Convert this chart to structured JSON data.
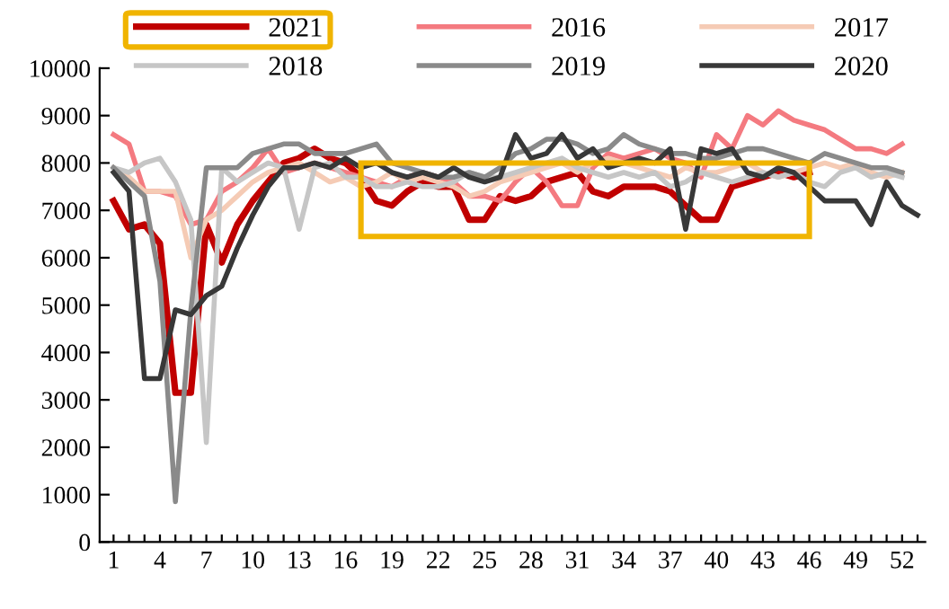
{
  "chart_data": {
    "type": "line",
    "categories": [
      "1",
      null,
      null,
      "4",
      null,
      null,
      "7",
      null,
      null,
      "10",
      null,
      null,
      "13",
      null,
      null,
      "16",
      null,
      null,
      "19",
      null,
      null,
      "22",
      null,
      null,
      "25",
      null,
      null,
      "28",
      null,
      null,
      "31",
      null,
      null,
      "34",
      null,
      null,
      "37",
      null,
      null,
      "40",
      null,
      null,
      "43",
      null,
      null,
      "46",
      null,
      null,
      "49",
      null,
      null,
      "52",
      null
    ],
    "series": [
      {
        "name": "2021",
        "color": "#c00000",
        "values": [
          7200,
          6600,
          6700,
          6300,
          3150,
          3150,
          6700,
          5900,
          6700,
          7200,
          7600,
          8000,
          8100,
          8300,
          8100,
          8000,
          7700,
          7200,
          7100,
          7400,
          7600,
          7500,
          7500,
          6800,
          6800,
          7300,
          7200,
          7300,
          7600,
          7700,
          7800,
          7400,
          7300,
          7500,
          7500,
          7500,
          7400,
          7100,
          6800,
          6800,
          7500,
          7600,
          7700,
          7800,
          7700,
          7800,
          null,
          null,
          null,
          null,
          null,
          null,
          null
        ]
      },
      {
        "name": "2016",
        "color": "#f47a80",
        "values": [
          8600,
          8400,
          7400,
          7400,
          7300,
          6700,
          6800,
          7400,
          7600,
          7900,
          8300,
          7800,
          7900,
          8000,
          7900,
          7800,
          7700,
          7600,
          7500,
          7700,
          7800,
          7700,
          7600,
          7300,
          7300,
          7200,
          7600,
          7900,
          7600,
          7100,
          7100,
          7900,
          8200,
          8100,
          8200,
          8300,
          8100,
          8000,
          7700,
          8600,
          8300,
          9000,
          8800,
          9100,
          8900,
          8800,
          8700,
          8500,
          8300,
          8300,
          8200,
          8400,
          null
        ]
      },
      {
        "name": "2017",
        "color": "#f5cbb5",
        "values": [
          7900,
          7700,
          7400,
          7400,
          7400,
          6000,
          6800,
          7000,
          7300,
          7600,
          7800,
          7900,
          8000,
          7800,
          7600,
          7700,
          7500,
          7600,
          7800,
          7600,
          7700,
          7600,
          7500,
          7300,
          7400,
          7600,
          7700,
          7800,
          7900,
          8000,
          7800,
          8000,
          8100,
          8000,
          7900,
          7800,
          7700,
          7900,
          7800,
          7800,
          7900,
          8000,
          7800,
          7700,
          7800,
          7900,
          8000,
          7900,
          8000,
          7800,
          7700,
          7800,
          null
        ]
      },
      {
        "name": "2018",
        "color": "#c6c6c6",
        "values": [
          7900,
          7800,
          8000,
          8100,
          7600,
          6800,
          2100,
          7900,
          7600,
          7800,
          8000,
          7900,
          6600,
          7900,
          8000,
          7700,
          7700,
          7500,
          7500,
          7600,
          7500,
          7500,
          7600,
          7800,
          7700,
          7700,
          7800,
          7900,
          8000,
          8100,
          7900,
          7800,
          7700,
          7800,
          7700,
          7800,
          7500,
          7600,
          7800,
          7700,
          7600,
          7700,
          7800,
          7700,
          7800,
          7600,
          7500,
          7800,
          7900,
          7700,
          7800,
          7700,
          null
        ]
      },
      {
        "name": "2019",
        "color": "#8a8a8a",
        "values": [
          7900,
          7600,
          7300,
          5500,
          850,
          4900,
          7900,
          7900,
          7900,
          8200,
          8300,
          8400,
          8400,
          8200,
          8200,
          8200,
          8300,
          8400,
          8000,
          7900,
          7800,
          7700,
          7700,
          7800,
          7700,
          7900,
          8200,
          8300,
          8500,
          8500,
          8400,
          8200,
          8300,
          8600,
          8400,
          8300,
          8200,
          8200,
          8100,
          8100,
          8200,
          8300,
          8300,
          8200,
          8100,
          8000,
          8200,
          8100,
          8000,
          7900,
          7900,
          7800,
          null
        ]
      },
      {
        "name": "2020",
        "color": "#383838",
        "values": [
          7800,
          7400,
          3450,
          3450,
          4900,
          4800,
          5200,
          5400,
          6200,
          6900,
          7500,
          7900,
          7900,
          8000,
          7900,
          8100,
          7900,
          8000,
          7800,
          7700,
          7800,
          7700,
          7900,
          7700,
          7600,
          7700,
          8600,
          8100,
          8200,
          8600,
          8100,
          8300,
          7900,
          8000,
          8100,
          8000,
          8300,
          6600,
          8300,
          8200,
          8300,
          7800,
          7700,
          7900,
          7800,
          7500,
          7200,
          7200,
          7200,
          6700,
          7600,
          7100,
          6900
        ]
      }
    ],
    "ylim": [
      0,
      10000
    ],
    "yticks": [
      0,
      1000,
      2000,
      3000,
      4000,
      5000,
      6000,
      7000,
      8000,
      9000,
      10000
    ],
    "legend": "top",
    "grid": false,
    "marker": "none",
    "line_style": "solid"
  }
}
